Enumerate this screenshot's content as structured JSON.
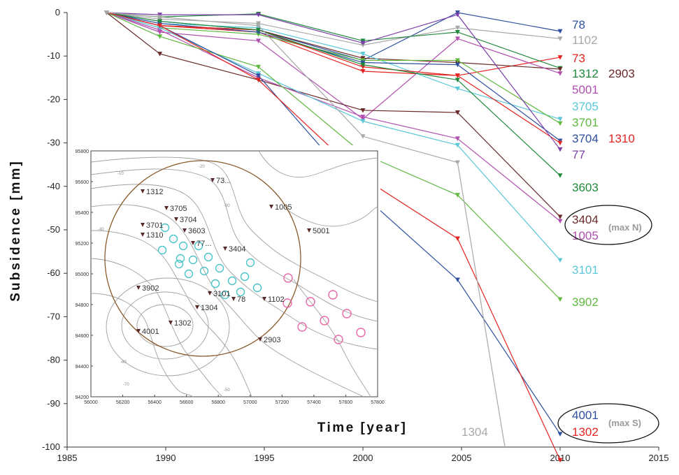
{
  "chart_data": {
    "type": "line",
    "title": "",
    "xlabel": "Time   [year]",
    "ylabel": "Subsidence  [mm]",
    "xlim": [
      1985,
      2015
    ],
    "ylim": [
      -100,
      0
    ],
    "xticks": [
      1985,
      1990,
      1995,
      2000,
      2005,
      2010,
      2015
    ],
    "yticks": [
      0,
      -10,
      -20,
      -30,
      -40,
      -50,
      -60,
      -70,
      -80,
      -90,
      -100
    ],
    "x": [
      1987,
      1989.7,
      1994.7,
      2000,
      2004.8,
      2010
    ],
    "series": [
      {
        "name": "78",
        "color": "#2f4f9f",
        "values": [
          0,
          -2,
          -4,
          -11,
          0,
          -4.3
        ]
      },
      {
        "name": "1102",
        "color": "#a8a8a8",
        "values": [
          0,
          -1.5,
          -2.5,
          -7.5,
          -3.5,
          -6
        ]
      },
      {
        "name": "73",
        "color": "#e52421",
        "values": [
          0,
          -3,
          -4.5,
          -13.5,
          -14.5,
          -10.3
        ]
      },
      {
        "name": "1312",
        "color": "#1f8a3c",
        "values": [
          0,
          -1,
          -0.3,
          -6.5,
          -4.5,
          -12.8
        ]
      },
      {
        "name": "2903",
        "color": "#6b2a2a",
        "values": [
          0,
          -3,
          -4,
          -10.5,
          -11.5,
          -13
        ]
      },
      {
        "name": "5001",
        "color": "#b04fb0",
        "values": [
          0,
          -4.5,
          -6.5,
          -24.5,
          -6,
          -14
        ]
      },
      {
        "name": "3705",
        "color": "#5ac8d8",
        "values": [
          0,
          -2.5,
          -3.5,
          -9.5,
          -17.5,
          -24.5
        ]
      },
      {
        "name": "3701",
        "color": "#5fb840",
        "values": [
          0,
          -3.5,
          -5,
          -11,
          -11,
          -25.5
        ]
      },
      {
        "name": "3704",
        "color": "#2f4f9f",
        "values": [
          0,
          -2.5,
          -4.5,
          -11.5,
          -12,
          -29.5
        ]
      },
      {
        "name": "1310",
        "color": "#e52421",
        "values": [
          0,
          -3,
          -4,
          -12.5,
          -14.5,
          -30
        ]
      },
      {
        "name": "77",
        "color": "#7b3fa8",
        "values": [
          0,
          -0.5,
          -0.5,
          -7,
          -0.5,
          -31.5
        ]
      },
      {
        "name": "3603",
        "color": "#1f8a3c",
        "values": [
          0,
          -2,
          -4,
          -12,
          -15.5,
          -37.5
        ]
      },
      {
        "name": "3404",
        "color": "#6b2a2a",
        "values": [
          0,
          -9.5,
          -15.5,
          -22.5,
          -23,
          -47
        ]
      },
      {
        "name": "1005",
        "color": "#b04fb0",
        "values": [
          0,
          -4,
          -15,
          -24,
          -29,
          -48
        ]
      },
      {
        "name": "3101",
        "color": "#5ac8d8",
        "values": [
          0,
          -3.5,
          -14,
          -25,
          -30.5,
          -57
        ]
      },
      {
        "name": "3902",
        "color": "#5fb840",
        "values": [
          0,
          -5.5,
          -12.5,
          -32.5,
          -42,
          -66
        ]
      },
      {
        "name": "4001",
        "color": "#2f4f9f",
        "values": [
          0,
          -3,
          -14.5,
          -42,
          -61.5,
          -97
        ]
      },
      {
        "name": "1302",
        "color": "#e52421",
        "values": [
          0,
          -3,
          -15.5,
          -38,
          -52,
          -103
        ]
      },
      {
        "name": "1304",
        "color": "#a8a8a8",
        "values": [
          0,
          -1,
          -3,
          -28.5,
          -34.5,
          null
        ]
      }
    ],
    "extra_labels": [
      {
        "text": "1304",
        "color": "#a8a8a8"
      },
      {
        "text": "(max N)",
        "color": "#9a9a9a"
      },
      {
        "text": "(max S)",
        "color": "#9a9a9a"
      }
    ],
    "inset": {
      "x_ticks": [
        "56000",
        "56200",
        "56400",
        "56600",
        "56800",
        "57000",
        "57200",
        "57400",
        "57600",
        "57800"
      ],
      "y_ticks": [
        "95800",
        "95600",
        "95400",
        "95200",
        "95000",
        "94800",
        "94600",
        "94400",
        "94200"
      ],
      "contour_labels": [
        "-10",
        "-20",
        "-30",
        "-40",
        "-50",
        "-60",
        "-70"
      ],
      "benchmarks": [
        "1312",
        "73...",
        "3705",
        "1005",
        "3701",
        "3704",
        "1310",
        "3603",
        "77...",
        "5001",
        "3404",
        "3902",
        "3101",
        "78",
        "1102",
        "1304",
        "4001",
        "1302",
        "2903"
      ]
    }
  }
}
